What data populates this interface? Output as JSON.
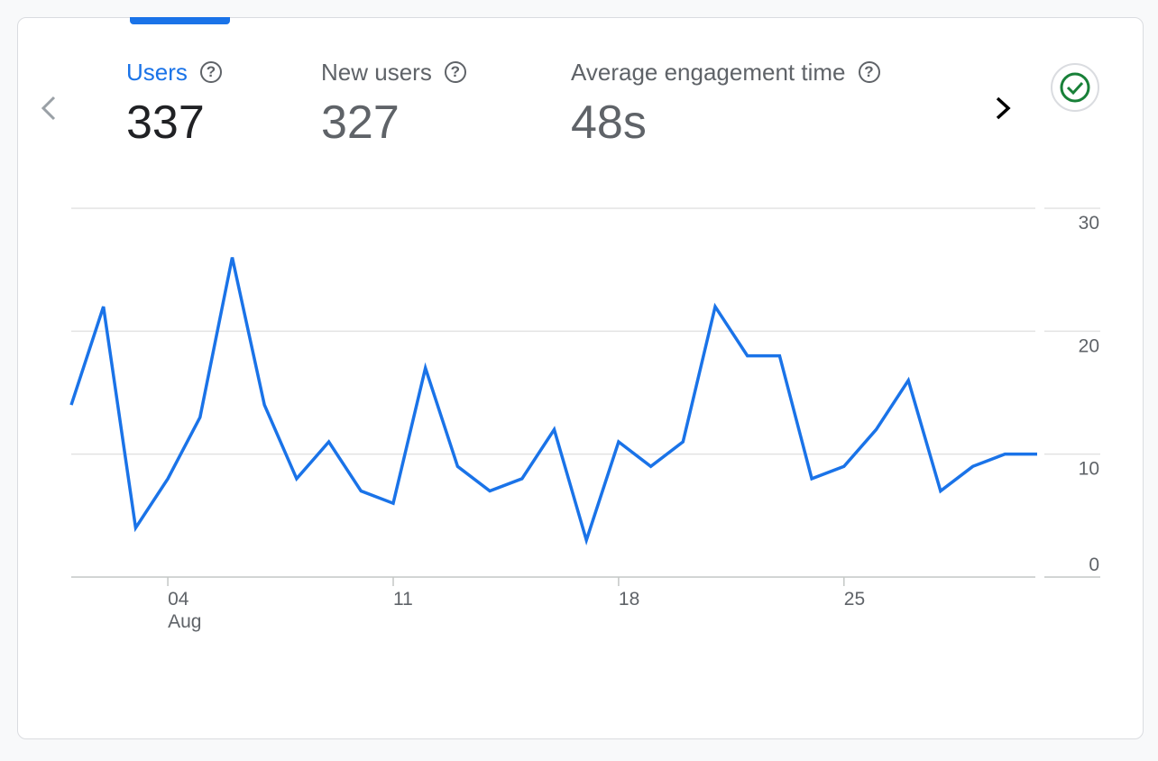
{
  "metrics": [
    {
      "label": "Users",
      "value": "337",
      "active": true
    },
    {
      "label": "New users",
      "value": "327",
      "active": false
    },
    {
      "label": "Average engagement time",
      "value": "48s",
      "active": false
    }
  ],
  "icons": {
    "prev": "chevron-left-icon",
    "next": "chevron-right-icon",
    "help": "help-circle-icon",
    "status": "check-circle-icon"
  },
  "colors": {
    "accent": "#1a73e8",
    "status_ok": "#188038"
  },
  "chart_data": {
    "type": "line",
    "title": "Users",
    "x": [
      "1",
      "2",
      "3",
      "4",
      "5",
      "6",
      "7",
      "8",
      "9",
      "10",
      "11",
      "12",
      "13",
      "14",
      "15",
      "16",
      "17",
      "18",
      "19",
      "20",
      "21",
      "22",
      "23",
      "24",
      "25",
      "26",
      "27",
      "28",
      "29",
      "30",
      "31"
    ],
    "series": [
      {
        "name": "Users",
        "values": [
          14,
          22,
          4,
          8,
          13,
          26,
          14,
          8,
          11,
          7,
          6,
          17,
          9,
          7,
          8,
          12,
          3,
          11,
          9,
          11,
          22,
          18,
          18,
          8,
          9,
          12,
          16,
          7,
          9,
          10,
          10
        ]
      }
    ],
    "ylim": [
      0,
      30
    ],
    "yticks": [
      "0",
      "10",
      "20",
      "30"
    ],
    "xticks": [
      {
        "index": 3,
        "label": "04",
        "sublabel": "Aug"
      },
      {
        "index": 10,
        "label": "11"
      },
      {
        "index": 17,
        "label": "18"
      },
      {
        "index": 24,
        "label": "25"
      }
    ],
    "grid": true,
    "ylabel_position": "right"
  }
}
